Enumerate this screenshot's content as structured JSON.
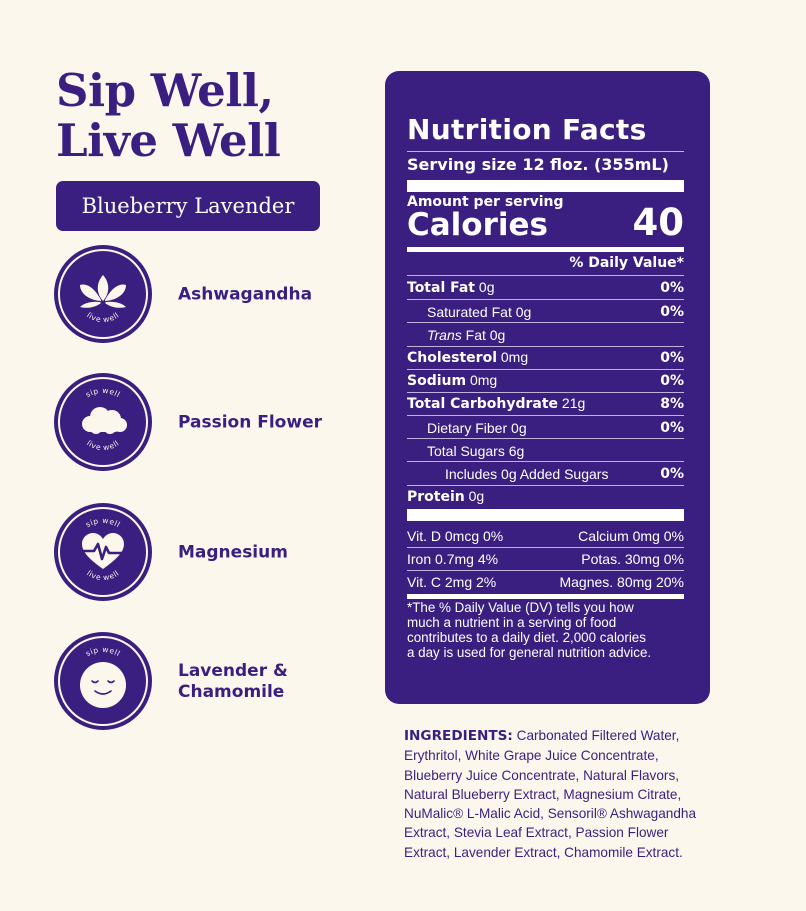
{
  "headline": {
    "line1": "Sip Well,",
    "line2": "Live Well"
  },
  "flavor": "Blueberry Lavender",
  "badge_text": {
    "top": "sip well",
    "bottom": "live well"
  },
  "ingredient_badges": [
    {
      "label": "Ashwagandha",
      "icon": "lotus-icon"
    },
    {
      "label": "Passion Flower",
      "icon": "cloud-icon"
    },
    {
      "label": "Magnesium",
      "icon": "heartbeat-icon"
    },
    {
      "label": "Lavender &\nChamomile",
      "icon": "smiley-icon"
    }
  ],
  "nutrition": {
    "title": "Nutrition Facts",
    "serving": "Serving size 12 floz. (355mL)",
    "amount_per_serving": "Amount per serving",
    "calories_label": "Calories",
    "calories_value": "40",
    "dv_header": "% Daily Value*",
    "rows": [
      {
        "name": "Total Fat",
        "amount": " 0g",
        "dv": "0%"
      },
      {
        "name": "Saturated Fat",
        "amount": " 0g",
        "dv": "0%"
      },
      {
        "name": "Trans",
        "amount": " Fat 0g",
        "dv": ""
      },
      {
        "name": "Cholesterol",
        "amount": " 0mg",
        "dv": "0%"
      },
      {
        "name": "Sodium",
        "amount": " 0mg",
        "dv": "0%"
      },
      {
        "name": "Total Carbohydrate",
        "amount": " 21g",
        "dv": "8%"
      },
      {
        "name": "Dietary Fiber",
        "amount": " 0g",
        "dv": "0%"
      },
      {
        "name": "Total Sugars",
        "amount": " 6g",
        "dv": ""
      },
      {
        "name": "Includes 0g Added Sugars",
        "amount": "",
        "dv": "0%"
      },
      {
        "name": "Protein",
        "amount": " 0g",
        "dv": ""
      }
    ],
    "vitamins": [
      {
        "left": "Vit. D 0mcg 0%",
        "right": "Calcium 0mg 0%"
      },
      {
        "left": "Iron 0.7mg 4%",
        "right": "Potas. 30mg 0%"
      },
      {
        "left": "Vit. C 2mg 2%",
        "right": "Magnes. 80mg 20%"
      }
    ],
    "footnote": "*The % Daily Value (DV) tells you how\n much a nutrient in a serving of food\n contributes to a daily diet. 2,000 calories\n a day is used for general nutrition advice."
  },
  "ingredients": {
    "label": "INGREDIENTS:",
    "text": "Carbonated Filtered Water, Erythritol, White Grape Juice Concentrate, Blueberry Juice Concentrate, Natural Flavors, Natural Blueberry Extract, Magnesium Citrate, NuMalic® L-Malic Acid, Sensoril® Ashwagandha Extract, Stevia Leaf Extract, Passion Flower Extract, Lavender Extract, Chamomile Extract."
  }
}
